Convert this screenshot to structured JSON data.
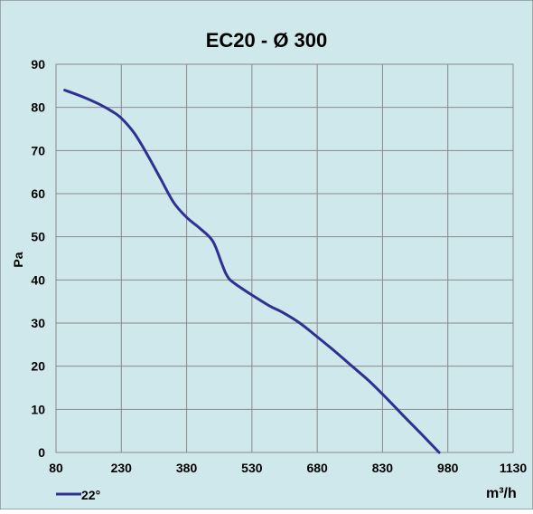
{
  "chart_data": {
    "type": "line",
    "title": "EC20 - Ø 300",
    "xlabel": "m³/h",
    "ylabel": "Pa",
    "xlim": [
      80,
      1130
    ],
    "ylim": [
      0,
      90
    ],
    "x_ticks": [
      80,
      230,
      380,
      530,
      680,
      830,
      980,
      1130
    ],
    "y_ticks": [
      0,
      10,
      20,
      30,
      40,
      50,
      60,
      70,
      80,
      90
    ],
    "x_tick_labels": [
      "80",
      "230",
      "380",
      "530",
      "680",
      "830",
      "980",
      "1130"
    ],
    "y_tick_labels": [
      "0",
      "10",
      "20",
      "30",
      "40",
      "50",
      "60",
      "70",
      "80",
      "90"
    ],
    "grid": true,
    "legend_position": "bottom-left",
    "series": [
      {
        "name": "22°",
        "color": "#2e3192",
        "x": [
          100,
          140,
          180,
          210,
          230,
          260,
          290,
          320,
          350,
          380,
          410,
          440,
          460,
          470,
          480,
          500,
          530,
          570,
          600,
          640,
          680,
          720,
          760,
          800,
          840,
          880,
          920,
          960
        ],
        "y": [
          84,
          82.5,
          80.7,
          79,
          77.5,
          74,
          69,
          63.5,
          58,
          54.5,
          52,
          49,
          44,
          41.5,
          40,
          38.5,
          36.5,
          34,
          32.5,
          30,
          26.8,
          23.5,
          20,
          16.5,
          12.5,
          8.3,
          4.2,
          0
        ]
      }
    ]
  },
  "colors": {
    "plot_background": "#cfe8ec",
    "gridline": "#8a8a8a",
    "frame": "#6a6a6a",
    "text": "#000000"
  }
}
